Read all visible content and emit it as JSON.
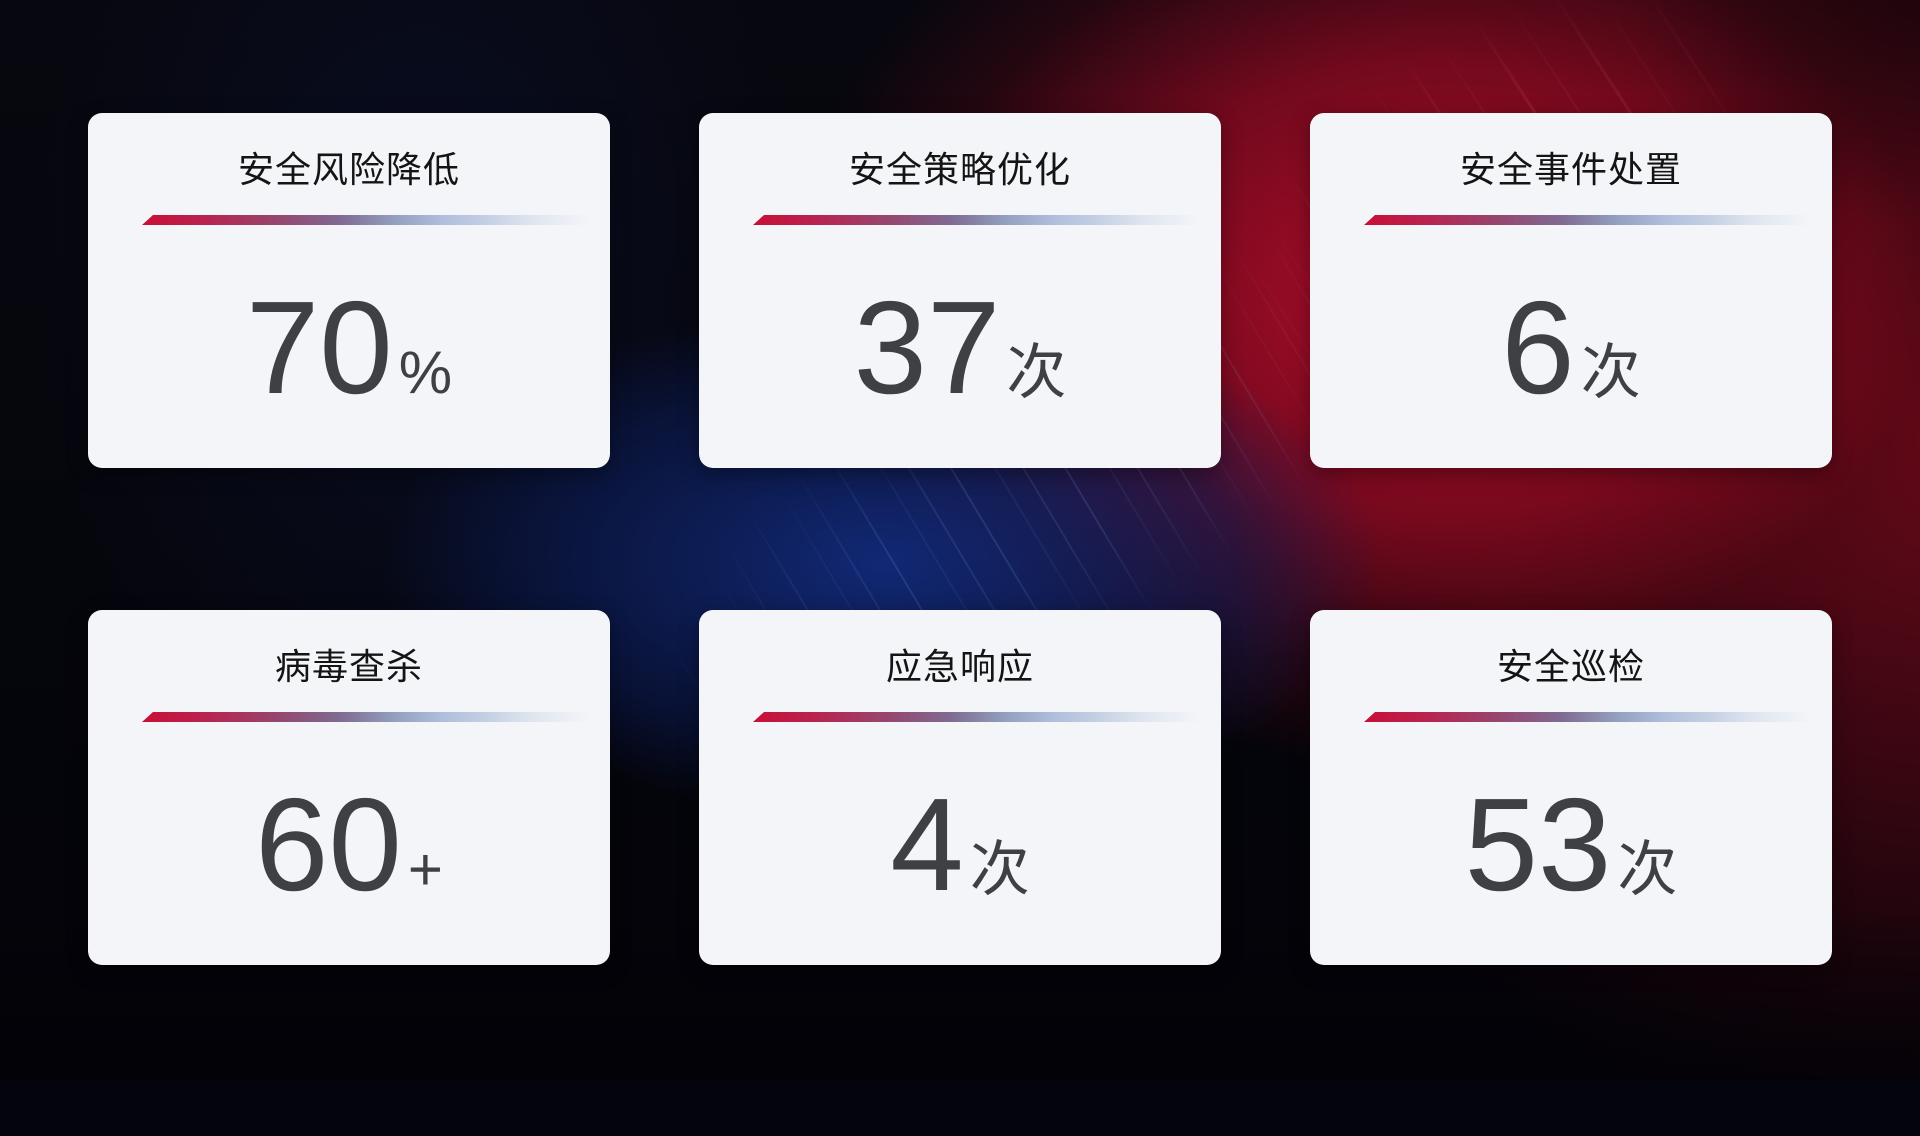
{
  "colors": {
    "card_bg": "#f3f5f8",
    "title_text": "#141414",
    "value_text": "#3e4044",
    "divider_red": "#c80f36",
    "divider_blue": "#b9c6da",
    "bg_red": "#ba0d2c",
    "bg_navy": "#12266e"
  },
  "cards": [
    {
      "title": "安全风险降低",
      "value": "70",
      "unit": "%"
    },
    {
      "title": "安全策略优化",
      "value": "37",
      "unit": "次"
    },
    {
      "title": "安全事件处置",
      "value": "6",
      "unit": "次"
    },
    {
      "title": "病毒查杀",
      "value": "60",
      "unit": "+"
    },
    {
      "title": "应急响应",
      "value": "4",
      "unit": "次"
    },
    {
      "title": "安全巡检",
      "value": "53",
      "unit": "次"
    }
  ]
}
